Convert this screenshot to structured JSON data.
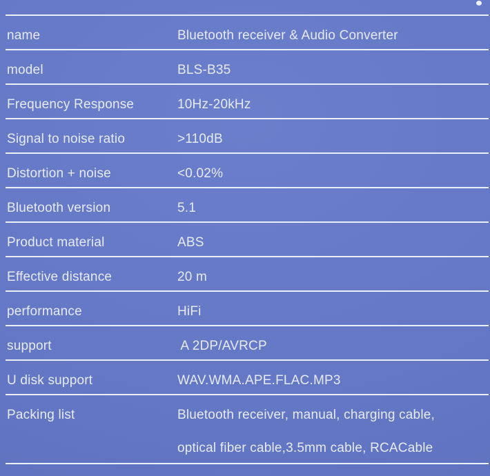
{
  "page": {
    "background_color": "#6478c6",
    "divider_color": "#f4f6fb",
    "text_color": "#e6ebf7",
    "corner_dot_color": "#eef2fa"
  },
  "spec_table": {
    "rows": [
      {
        "label": "name",
        "value": "Bluetooth receiver & Audio Converter"
      },
      {
        "label": "model",
        "value": "BLS-B35"
      },
      {
        "label": "Frequency Response",
        "value": "10Hz-20kHz"
      },
      {
        "label": "Signal to noise ratio",
        "value": ">110dB"
      },
      {
        "label": "Distortion + noise",
        "value": "<0.02%"
      },
      {
        "label": "Bluetooth version",
        "value": "5.1"
      },
      {
        "label": "Product material",
        "value": "ABS"
      },
      {
        "label": "Effective distance",
        "value": "20 m"
      },
      {
        "label": "performance",
        "value": "HiFi"
      },
      {
        "label": "support",
        "value": " A 2DP/AVRCP"
      },
      {
        "label": "U disk support",
        "value": "WAV.WMA.APE.FLAC.MP3"
      },
      {
        "label": "Packing list",
        "value": "Bluetooth receiver, manual, charging cable,",
        "value2": "optical fiber cable,3.5mm cable, RCACable"
      }
    ]
  }
}
